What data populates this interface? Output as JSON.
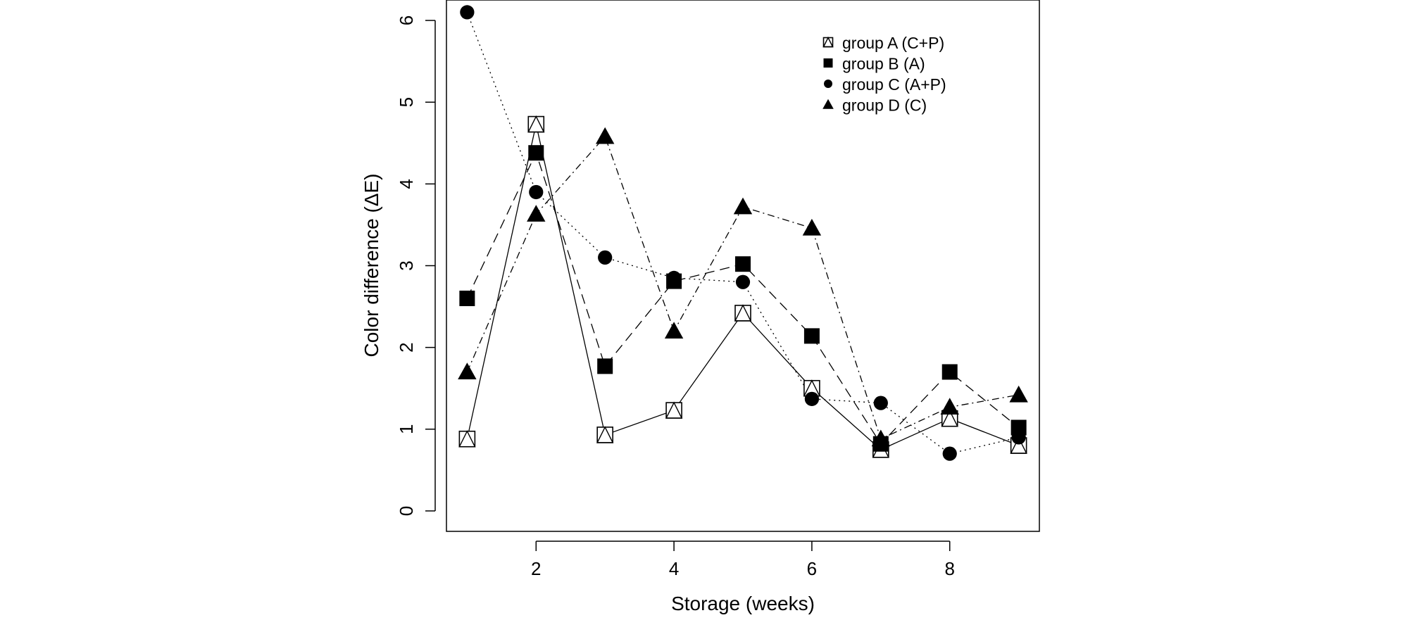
{
  "chart_data": {
    "type": "line",
    "title": "",
    "xlabel": "Storage (weeks)",
    "ylabel": "Color difference (ΔE)",
    "xlim": [
      0.7,
      9.3
    ],
    "ylim": [
      -0.25,
      6.25
    ],
    "x_ticks": [
      2,
      4,
      6,
      8
    ],
    "y_ticks": [
      0,
      1,
      2,
      3,
      4,
      5,
      6
    ],
    "grid": false,
    "legend_position": "top-right",
    "x": [
      1,
      2,
      3,
      4,
      5,
      6,
      7,
      8,
      9
    ],
    "series": [
      {
        "name": "group A (C+P)",
        "marker": "square-open-triangle",
        "line_style": "solid",
        "values": [
          0.88,
          4.73,
          0.93,
          1.23,
          2.42,
          1.5,
          0.75,
          1.13,
          0.8
        ]
      },
      {
        "name": "group B (A)",
        "marker": "square-filled",
        "line_style": "long-dash",
        "values": [
          2.6,
          4.38,
          1.77,
          2.81,
          3.02,
          2.14,
          0.82,
          1.7,
          1.02
        ]
      },
      {
        "name": "group C (A+P)",
        "marker": "circle-filled",
        "line_style": "dotted",
        "values": [
          6.1,
          3.9,
          3.1,
          2.85,
          2.8,
          1.37,
          1.32,
          0.7,
          0.9
        ]
      },
      {
        "name": "group D (C)",
        "marker": "triangle-filled",
        "line_style": "dash-dot",
        "values": [
          1.7,
          3.63,
          4.58,
          2.2,
          3.72,
          3.46,
          0.88,
          1.27,
          1.42
        ]
      }
    ]
  }
}
